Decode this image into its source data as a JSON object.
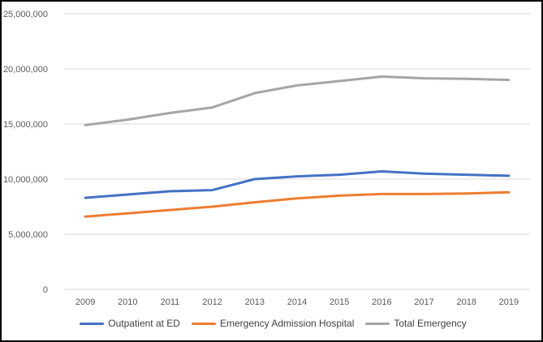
{
  "chart_data": {
    "type": "line",
    "title": "",
    "xlabel": "",
    "ylabel": "",
    "categories": [
      "2009",
      "2010",
      "2011",
      "2012",
      "2013",
      "2014",
      "2015",
      "2016",
      "2017",
      "2018",
      "2019"
    ],
    "series": [
      {
        "name": "Outpatient at ED",
        "color": "#4472C4",
        "values": [
          8300000,
          8600000,
          8900000,
          9000000,
          10000000,
          10250000,
          10400000,
          10700000,
          10500000,
          10400000,
          10300000
        ]
      },
      {
        "name": "Emergency Admission Hospital",
        "color": "#ED7D31",
        "values": [
          6600000,
          6900000,
          7200000,
          7500000,
          7900000,
          8250000,
          8500000,
          8650000,
          8650000,
          8700000,
          8800000
        ]
      },
      {
        "name": "Total Emergency",
        "color": "#A5A5A5",
        "values": [
          14900000,
          15400000,
          16000000,
          16500000,
          17800000,
          18500000,
          18900000,
          19300000,
          19150000,
          19100000,
          19000000
        ]
      }
    ],
    "ylim": [
      0,
      25000000
    ],
    "ytick_step": 5000000,
    "ytick_labels": [
      "0",
      "5,000,000",
      "10,000,000",
      "15,000,000",
      "20,000,000",
      "25,000,000"
    ],
    "grid": "horizontal",
    "gridline_color": "#D9D9D9",
    "legend_position": "bottom"
  }
}
